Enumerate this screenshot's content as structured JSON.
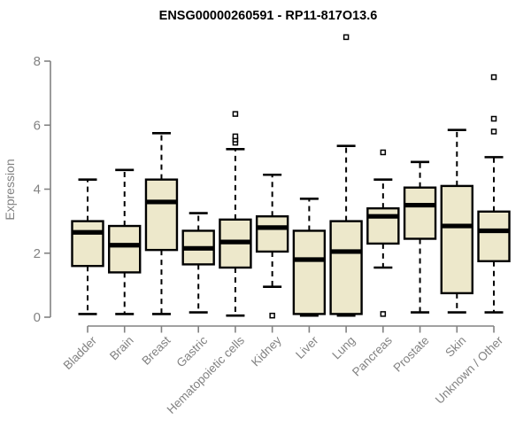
{
  "chart_data": {
    "type": "box",
    "title": "ENSG00000260591 - RP11-817O13.6",
    "ylabel": "Expression",
    "xlabel": "",
    "ylim": [
      0,
      8
    ],
    "yticks": [
      0,
      2,
      4,
      6,
      8
    ],
    "grid": false,
    "legend": "none",
    "categories": [
      "Bladder",
      "Brain",
      "Breast",
      "Gastric",
      "Hematopoietic cells",
      "Kidney",
      "Liver",
      "Lung",
      "Pancreas",
      "Prostate",
      "Skin",
      "Unknown / Other"
    ],
    "boxes": [
      {
        "category": "Bladder",
        "whisker_low": 0.1,
        "q1": 1.6,
        "median": 2.65,
        "q3": 3.0,
        "whisker_high": 4.3,
        "outliers": []
      },
      {
        "category": "Brain",
        "whisker_low": 0.1,
        "q1": 1.4,
        "median": 2.25,
        "q3": 2.85,
        "whisker_high": 4.6,
        "outliers": []
      },
      {
        "category": "Breast",
        "whisker_low": 0.1,
        "q1": 2.1,
        "median": 3.6,
        "q3": 4.3,
        "whisker_high": 5.75,
        "outliers": []
      },
      {
        "category": "Gastric",
        "whisker_low": 0.15,
        "q1": 1.65,
        "median": 2.15,
        "q3": 2.7,
        "whisker_high": 3.25,
        "outliers": []
      },
      {
        "category": "Hematopoietic cells",
        "whisker_low": 0.05,
        "q1": 1.55,
        "median": 2.35,
        "q3": 3.05,
        "whisker_high": 5.25,
        "outliers": [
          5.45,
          5.55,
          5.65,
          6.35
        ]
      },
      {
        "category": "Kidney",
        "whisker_low": 0.95,
        "q1": 2.05,
        "median": 2.8,
        "q3": 3.15,
        "whisker_high": 4.45,
        "outliers": [
          0.05
        ]
      },
      {
        "category": "Liver",
        "whisker_low": 0.05,
        "q1": 0.1,
        "median": 1.8,
        "q3": 2.7,
        "whisker_high": 3.7,
        "outliers": []
      },
      {
        "category": "Lung",
        "whisker_low": 0.05,
        "q1": 0.1,
        "median": 2.05,
        "q3": 3.0,
        "whisker_high": 5.35,
        "outliers": [
          8.75
        ]
      },
      {
        "category": "Pancreas",
        "whisker_low": 1.55,
        "q1": 2.3,
        "median": 3.15,
        "q3": 3.4,
        "whisker_high": 4.3,
        "outliers": [
          0.1,
          5.15
        ]
      },
      {
        "category": "Prostate",
        "whisker_low": 0.15,
        "q1": 2.45,
        "median": 3.5,
        "q3": 4.05,
        "whisker_high": 4.85,
        "outliers": []
      },
      {
        "category": "Skin",
        "whisker_low": 0.15,
        "q1": 0.75,
        "median": 2.85,
        "q3": 4.1,
        "whisker_high": 5.85,
        "outliers": []
      },
      {
        "category": "Unknown / Other",
        "whisker_low": 0.15,
        "q1": 1.75,
        "median": 2.7,
        "q3": 3.3,
        "whisker_high": 5.0,
        "outliers": [
          5.8,
          6.2,
          7.5
        ]
      }
    ],
    "colors": {
      "background": "#ffffff",
      "box_fill": "#ede8cb",
      "box_stroke": "#000000",
      "median": "#000000",
      "whisker": "#000000",
      "outlier_fill": "#ffffff",
      "outlier_stroke": "#000000",
      "axis": "#828282",
      "tick_label": "#828282",
      "title": "#000000"
    }
  }
}
